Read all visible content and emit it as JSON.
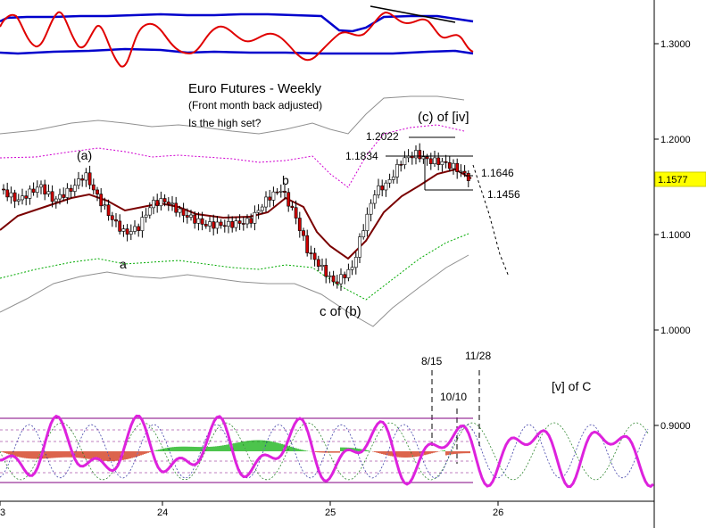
{
  "chart_data": {
    "type": "candlestick",
    "title": "Euro Futures - Weekly",
    "subtitle": "(Front month back adjusted)",
    "note": "Is the high set?",
    "current_price": "1.1577",
    "y_ticks": [
      "1.3000",
      "1.2000",
      "1.1000",
      "1.0000",
      "0.9000"
    ],
    "x_ticks": [
      "3",
      "24",
      "25",
      "26"
    ],
    "wave_labels": [
      "(a)",
      "a",
      "b",
      "c of (b)",
      "(c) of [iv]",
      "[v] of C"
    ],
    "levels": [
      "1.2022",
      "1.1834",
      "1.1646",
      "1.1456"
    ],
    "cycle_dates": [
      "8/15",
      "10/10",
      "11/28"
    ],
    "colors": {
      "oscillator_band": "#0000cc",
      "oscillator_line": "#e00000",
      "moving_average": "#7a0000",
      "envelope_inner": "#d000d0",
      "envelope_lower": "#00aa00",
      "envelope_outer": "#909090",
      "cycle_line": "#dd22dd",
      "histogram_up": "#00aa00",
      "histogram_down": "#cc2200",
      "price_highlight": "#ffff00"
    }
  }
}
